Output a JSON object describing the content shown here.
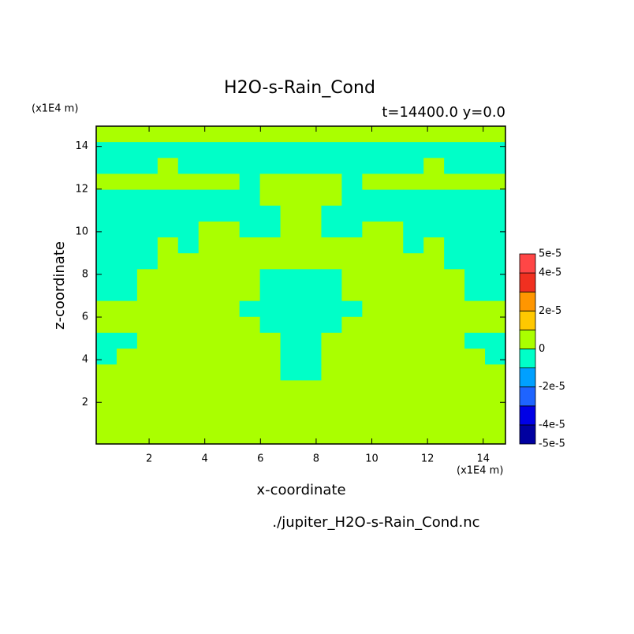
{
  "chart_data": {
    "type": "contour",
    "title": "H2O-s-Rain_Cond",
    "subtitle": "t=14400.0 y=0.0",
    "xlabel": "x-coordinate",
    "ylabel": "z-coordinate",
    "x_unit": "(x1E4 m)",
    "y_unit": "(x1E4 m)",
    "footer": "./jupiter_H2O-s-Rain_Cond.nc",
    "xlim": [
      0.1,
      14.8
    ],
    "ylim": [
      0.05,
      14.95
    ],
    "xticks": [
      2,
      4,
      6,
      8,
      10,
      12,
      14
    ],
    "yticks": [
      2,
      4,
      6,
      8,
      10,
      12,
      14
    ],
    "levels": [
      -5e-05,
      -4e-05,
      -3e-05,
      -2e-05,
      -1e-05,
      0,
      1e-05,
      2e-05,
      3e-05,
      4e-05,
      5e-05
    ],
    "colors": [
      "#0000a0",
      "#0000e6",
      "#1e64ff",
      "#00a0ff",
      "#00ffc8",
      "#aaff00",
      "#ffc800",
      "#ff9600",
      "#f03020",
      "#ff4646"
    ],
    "colorbar_ticks": [
      {
        "value": 5e-05,
        "label": "5e-5"
      },
      {
        "value": 4e-05,
        "label": "4e-5"
      },
      {
        "value": 2e-05,
        "label": "2e-5"
      },
      0,
      {
        "value": -2e-05,
        "label": "-2e-5"
      },
      {
        "value": -4e-05,
        "label": "-4e-5"
      },
      {
        "value": -5e-05,
        "label": "-5e-5"
      }
    ],
    "z": [
      [
        5e-06,
        5e-06,
        5e-06,
        5e-06,
        5e-06,
        5e-06,
        5e-06,
        5e-06,
        5e-06,
        5e-06,
        5e-06,
        5e-06,
        5e-06,
        5e-06,
        5e-06,
        5e-06,
        5e-06,
        5e-06,
        5e-06,
        5e-06
      ],
      [
        -5e-06,
        -5e-06,
        -5e-06,
        -5e-06,
        -5e-06,
        -5e-06,
        -5e-06,
        -5e-06,
        -5e-06,
        -5e-06,
        -5e-06,
        -5e-06,
        -5e-06,
        -5e-06,
        -5e-06,
        -5e-06,
        -5e-06,
        -5e-06,
        -5e-06,
        -5e-06
      ],
      [
        -5e-06,
        -5e-06,
        -5e-06,
        5e-06,
        -5e-06,
        -5e-06,
        -5e-06,
        -5e-06,
        -5e-06,
        -5e-06,
        -5e-06,
        -5e-06,
        -5e-06,
        -5e-06,
        -5e-06,
        -5e-06,
        5e-06,
        -5e-06,
        -5e-06,
        -5e-06
      ],
      [
        5e-06,
        5e-06,
        5e-06,
        5e-06,
        5e-06,
        5e-06,
        5e-06,
        -5e-06,
        5e-06,
        5e-06,
        5e-06,
        5e-06,
        -5e-06,
        5e-06,
        5e-06,
        5e-06,
        5e-06,
        5e-06,
        5e-06,
        5e-06
      ],
      [
        -5e-06,
        -5e-06,
        -5e-06,
        -5e-06,
        -5e-06,
        -5e-06,
        -5e-06,
        -5e-06,
        5e-06,
        5e-06,
        5e-06,
        5e-06,
        -5e-06,
        -5e-06,
        -5e-06,
        -5e-06,
        -5e-06,
        -5e-06,
        -5e-06,
        -5e-06
      ],
      [
        -5e-06,
        -5e-06,
        -5e-06,
        -5e-06,
        -5e-06,
        -5e-06,
        -5e-06,
        -5e-06,
        -5e-06,
        5e-06,
        5e-06,
        -5e-06,
        -5e-06,
        -5e-06,
        -5e-06,
        -5e-06,
        -5e-06,
        -5e-06,
        -5e-06,
        -5e-06
      ],
      [
        -5e-06,
        -5e-06,
        -5e-06,
        -5e-06,
        -5e-06,
        5e-06,
        5e-06,
        -5e-06,
        -5e-06,
        5e-06,
        5e-06,
        -5e-06,
        -5e-06,
        5e-06,
        5e-06,
        -5e-06,
        -5e-06,
        -5e-06,
        -5e-06,
        -5e-06
      ],
      [
        -5e-06,
        -5e-06,
        -5e-06,
        5e-06,
        -5e-06,
        5e-06,
        5e-06,
        5e-06,
        5e-06,
        5e-06,
        5e-06,
        5e-06,
        5e-06,
        5e-06,
        5e-06,
        -5e-06,
        5e-06,
        -5e-06,
        -5e-06,
        -5e-06
      ],
      [
        -5e-06,
        -5e-06,
        -5e-06,
        5e-06,
        5e-06,
        5e-06,
        5e-06,
        5e-06,
        5e-06,
        5e-06,
        5e-06,
        5e-06,
        5e-06,
        5e-06,
        5e-06,
        5e-06,
        5e-06,
        -5e-06,
        -5e-06,
        -5e-06
      ],
      [
        -5e-06,
        -5e-06,
        5e-06,
        5e-06,
        5e-06,
        5e-06,
        5e-06,
        5e-06,
        -5e-06,
        -5e-06,
        -5e-06,
        -5e-06,
        5e-06,
        5e-06,
        5e-06,
        5e-06,
        5e-06,
        5e-06,
        -5e-06,
        -5e-06
      ],
      [
        -5e-06,
        -5e-06,
        5e-06,
        5e-06,
        5e-06,
        5e-06,
        5e-06,
        5e-06,
        -5e-06,
        -5e-06,
        -5e-06,
        -5e-06,
        5e-06,
        5e-06,
        5e-06,
        5e-06,
        5e-06,
        5e-06,
        -5e-06,
        -5e-06
      ],
      [
        5e-06,
        5e-06,
        5e-06,
        5e-06,
        5e-06,
        5e-06,
        5e-06,
        -5e-06,
        -5e-06,
        -5e-06,
        -5e-06,
        -5e-06,
        -5e-06,
        5e-06,
        5e-06,
        5e-06,
        5e-06,
        5e-06,
        5e-06,
        5e-06
      ],
      [
        5e-06,
        5e-06,
        5e-06,
        5e-06,
        5e-06,
        5e-06,
        5e-06,
        5e-06,
        -5e-06,
        -5e-06,
        -5e-06,
        -5e-06,
        5e-06,
        5e-06,
        5e-06,
        5e-06,
        5e-06,
        5e-06,
        5e-06,
        5e-06
      ],
      [
        -5e-06,
        -5e-06,
        5e-06,
        5e-06,
        5e-06,
        5e-06,
        5e-06,
        5e-06,
        5e-06,
        -5e-06,
        -5e-06,
        5e-06,
        5e-06,
        5e-06,
        5e-06,
        5e-06,
        5e-06,
        5e-06,
        -5e-06,
        -5e-06
      ],
      [
        -5e-06,
        5e-06,
        5e-06,
        5e-06,
        5e-06,
        5e-06,
        5e-06,
        5e-06,
        5e-06,
        -5e-06,
        -5e-06,
        5e-06,
        5e-06,
        5e-06,
        5e-06,
        5e-06,
        5e-06,
        5e-06,
        5e-06,
        -5e-06
      ],
      [
        5e-06,
        5e-06,
        5e-06,
        5e-06,
        5e-06,
        5e-06,
        5e-06,
        5e-06,
        5e-06,
        -5e-06,
        -5e-06,
        5e-06,
        5e-06,
        5e-06,
        5e-06,
        5e-06,
        5e-06,
        5e-06,
        5e-06,
        5e-06
      ],
      [
        5e-06,
        5e-06,
        5e-06,
        5e-06,
        5e-06,
        5e-06,
        5e-06,
        5e-06,
        5e-06,
        5e-06,
        5e-06,
        5e-06,
        5e-06,
        5e-06,
        5e-06,
        5e-06,
        5e-06,
        5e-06,
        5e-06,
        5e-06
      ],
      [
        5e-06,
        5e-06,
        5e-06,
        5e-06,
        5e-06,
        5e-06,
        5e-06,
        5e-06,
        5e-06,
        5e-06,
        5e-06,
        5e-06,
        5e-06,
        5e-06,
        5e-06,
        5e-06,
        5e-06,
        5e-06,
        5e-06,
        5e-06
      ],
      [
        5e-06,
        5e-06,
        5e-06,
        5e-06,
        5e-06,
        5e-06,
        5e-06,
        5e-06,
        5e-06,
        5e-06,
        5e-06,
        5e-06,
        5e-06,
        5e-06,
        5e-06,
        5e-06,
        5e-06,
        5e-06,
        5e-06,
        5e-06
      ],
      [
        5e-06,
        5e-06,
        5e-06,
        5e-06,
        5e-06,
        5e-06,
        5e-06,
        5e-06,
        5e-06,
        5e-06,
        5e-06,
        5e-06,
        5e-06,
        5e-06,
        5e-06,
        5e-06,
        5e-06,
        5e-06,
        5e-06,
        5e-06
      ]
    ]
  }
}
